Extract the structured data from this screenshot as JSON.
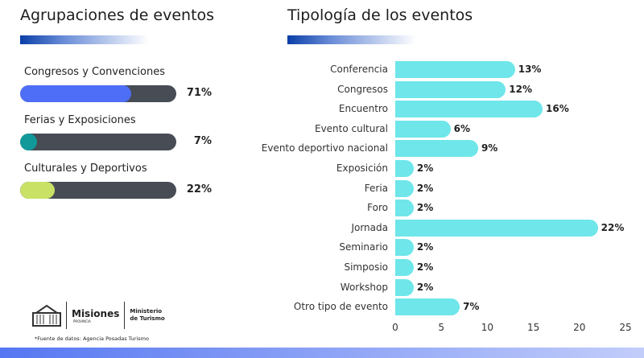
{
  "left": {
    "title": "Agrupaciones de eventos",
    "groups": [
      {
        "label": "Congresos y Convenciones",
        "value": 71,
        "display": "71%",
        "color": "#4f6ef7"
      },
      {
        "label": "Ferias y Exposiciones",
        "value": 7,
        "display": "7%",
        "color": "#11999a"
      },
      {
        "label": "Culturales y Deportivos",
        "value": 22,
        "display": "22%",
        "color": "#c9e265"
      }
    ]
  },
  "chart_data": {
    "type": "bar",
    "orientation": "horizontal",
    "title": "Tipología de los eventos",
    "categories": [
      "Conferencia",
      "Congresos",
      "Encuentro",
      "Evento cultural",
      "Evento deportivo nacional",
      "Exposición",
      "Feria",
      "Foro",
      "Jornada",
      "Seminario",
      "Simposio",
      "Workshop",
      "Otro tipo de evento"
    ],
    "values": [
      13,
      12,
      16,
      6,
      9,
      2,
      2,
      2,
      22,
      2,
      2,
      2,
      7
    ],
    "labels": [
      "13%",
      "12%",
      "16%",
      "6%",
      "9%",
      "2%",
      "2%",
      "2%",
      "22%",
      "2%",
      "2%",
      "2%",
      "7%"
    ],
    "xlim": [
      0,
      25
    ],
    "xticks": [
      "0",
      "5",
      "10",
      "15",
      "20",
      "25"
    ],
    "color": "#6ee6ea"
  },
  "footer": {
    "logo_text": "Misiones",
    "logo_sub": "PROVINCIA",
    "ministry": "Ministerio de Turismo",
    "source": "*Fuente de datos: Agencia Posadas Turismo"
  }
}
